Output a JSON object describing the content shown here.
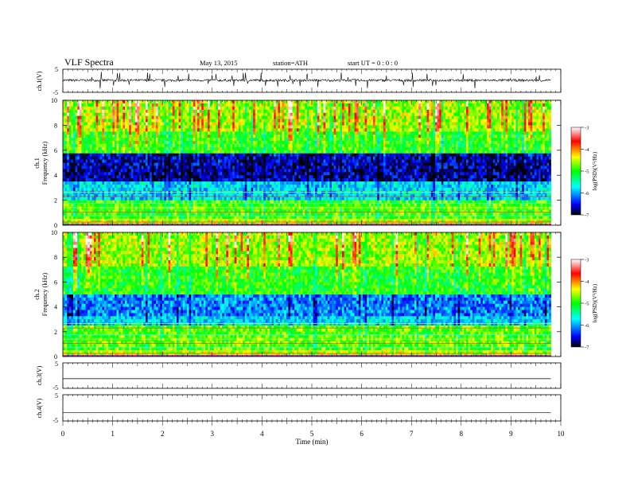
{
  "header": {
    "title": "VLF  Spectra",
    "date": "May 13, 2015",
    "station": "station=ATH",
    "start": "start  UT  =   0 : 0 : 0"
  },
  "chart_data": [
    {
      "type": "line",
      "panel": "ch1-waveform",
      "ylabel": "ch.1(V)",
      "ylim": [
        -5,
        5
      ],
      "yticks": [
        "5",
        "-5"
      ],
      "baseline_v": 0.2,
      "noise_amplitude_v": 0.5,
      "xlim": [
        0,
        10
      ],
      "data_end_min": 9.8
    },
    {
      "type": "heatmap",
      "panel": "ch1-spectrogram",
      "ylabel": [
        "ch.1",
        "Frequency  (kHz)"
      ],
      "ylim": [
        0,
        10
      ],
      "yticks": [
        "0",
        "2",
        "4",
        "6",
        "8",
        "10"
      ],
      "xlim": [
        0,
        10
      ],
      "data_end_min": 9.8,
      "colorbar": {
        "label": "log(PSD)(V²/Hz)",
        "ticks": [
          "-3",
          "-4",
          "-5",
          "-6",
          "-7"
        ],
        "range": [
          -7,
          -3
        ]
      },
      "colors": [
        "#ffffff",
        "#ff0000",
        "#ffff00",
        "#00ff00",
        "#00ffff",
        "#0000ff",
        "#000000"
      ]
    },
    {
      "type": "heatmap",
      "panel": "ch2-spectrogram",
      "ylabel": [
        "ch.2",
        "Frequency  (kHz)"
      ],
      "ylim": [
        0,
        10
      ],
      "yticks": [
        "0",
        "2",
        "4",
        "6",
        "8",
        "10"
      ],
      "xlim": [
        0,
        10
      ],
      "data_end_min": 9.8,
      "colorbar": {
        "label": "log(PSD)(V²/Hz)",
        "ticks": [
          "-3",
          "-4",
          "-5",
          "-6",
          "-7"
        ],
        "range": [
          -7,
          -3
        ]
      }
    },
    {
      "type": "line",
      "panel": "ch3-waveform",
      "ylabel": "ch.3(V)",
      "ylim": [
        -5,
        5
      ],
      "yticks": [
        "5",
        "-5"
      ],
      "baseline_v": -1.2
    },
    {
      "type": "line",
      "panel": "ch4-waveform",
      "ylabel": "ch.4(V)",
      "ylim": [
        -5,
        5
      ],
      "yticks": [
        "5",
        "-5"
      ],
      "baseline_v": -1.8
    }
  ],
  "xaxis": {
    "label": "Time  (min)",
    "ticks": [
      "0",
      "1",
      "2",
      "3",
      "4",
      "5",
      "6",
      "7",
      "8",
      "9",
      "10"
    ]
  }
}
